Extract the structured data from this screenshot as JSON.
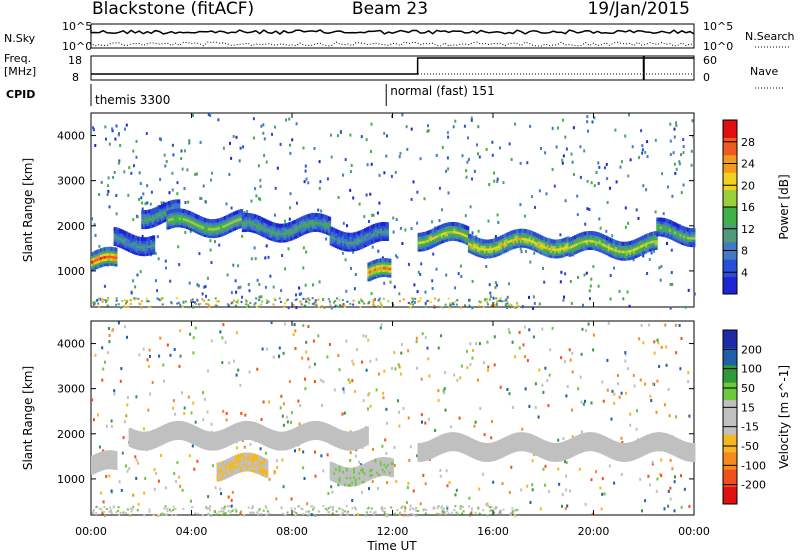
{
  "header": {
    "station": "Blackstone (fitACF)",
    "beam": "Beam 23",
    "date": "19/Jan/2015"
  },
  "aux_panels": {
    "nsky_label": "N.Sky",
    "nsearch_label": "N.Search",
    "nsky_ticks": [
      "10^5",
      "10^0"
    ],
    "nsearch_ticks": [
      "10^5",
      "10^0"
    ],
    "freq_label": "Freq.",
    "freq_unit": "[MHz]",
    "freq_ticks": [
      "18",
      "8"
    ],
    "nave_label": "Nave",
    "nave_ticks": [
      "60",
      "0"
    ],
    "cpid_label": "CPID",
    "cpid_modes": [
      {
        "name": "themis 3300",
        "start_hour": 0,
        "end_hour": 11.75
      },
      {
        "name": "normal (fast) 151",
        "start_hour": 11.75,
        "end_hour": 24
      }
    ],
    "freq_step_hour": 13.0,
    "nave_mark_hour": 22.0
  },
  "colors": {
    "power_scale": [
      "#1f23d6",
      "#2a4fd6",
      "#3f7bc4",
      "#4f9a7a",
      "#3fb04a",
      "#9cd03a",
      "#f0d020",
      "#f59a20",
      "#ef5a20",
      "#e01010"
    ],
    "velocity_scale": [
      "#e01010",
      "#f0501a",
      "#f58a1e",
      "#f5b820",
      "#c0c0c0",
      "#c0c0c0",
      "#6cc83c",
      "#2f9a3a",
      "#1f5fa8",
      "#1f2aa8"
    ]
  },
  "chart_data": [
    {
      "type": "heatmap",
      "name": "power",
      "xlabel": "",
      "ylabel": "Slant Range [km]",
      "xlim": [
        0,
        24
      ],
      "ylim": [
        200,
        4500
      ],
      "yticks": [
        1000,
        2000,
        3000,
        4000
      ],
      "colorbar": {
        "label": "Power [dB]",
        "ticks": [
          "4",
          "8",
          "12",
          "16",
          "20",
          "24",
          "28"
        ],
        "range": [
          0,
          30
        ]
      },
      "bands": [
        {
          "t_start": 0.0,
          "t_end": 1.0,
          "range_km": 1250,
          "value": 26
        },
        {
          "t_start": 0.9,
          "t_end": 2.5,
          "range_km": 1700,
          "value": 10
        },
        {
          "t_start": 2.0,
          "t_end": 3.5,
          "range_km": 2300,
          "value": 12
        },
        {
          "t_start": 3.0,
          "t_end": 6.0,
          "range_km": 2100,
          "value": 16
        },
        {
          "t_start": 6.0,
          "t_end": 9.5,
          "range_km": 2000,
          "value": 12
        },
        {
          "t_start": 9.5,
          "t_end": 11.8,
          "range_km": 1800,
          "value": 10
        },
        {
          "t_start": 11.0,
          "t_end": 11.9,
          "range_km": 1000,
          "value": 24
        },
        {
          "t_start": 13.0,
          "t_end": 15.0,
          "range_km": 1800,
          "value": 18
        },
        {
          "t_start": 15.0,
          "t_end": 19.0,
          "range_km": 1650,
          "value": 20
        },
        {
          "t_start": 19.0,
          "t_end": 22.5,
          "range_km": 1600,
          "value": 18
        },
        {
          "t_start": 22.5,
          "t_end": 24.0,
          "range_km": 1900,
          "value": 14
        }
      ]
    },
    {
      "type": "heatmap",
      "name": "velocity",
      "xlabel": "Time UT",
      "ylabel": "Slant Range [km]",
      "xlim": [
        0,
        24
      ],
      "ylim": [
        200,
        4500
      ],
      "yticks": [
        1000,
        2000,
        3000,
        4000
      ],
      "xticks": [
        "00:00",
        "04:00",
        "08:00",
        "12:00",
        "16:00",
        "20:00",
        "00:00"
      ],
      "colorbar": {
        "label": "Velocity [m s^-1]",
        "ticks": [
          "-200",
          "-100",
          "-50",
          "-15",
          "15",
          "50",
          "100",
          "200"
        ],
        "range": [
          -250,
          250
        ]
      },
      "bands": [
        {
          "t_start": 0.0,
          "t_end": 1.0,
          "range_km": 1350,
          "value": 0
        },
        {
          "t_start": 1.5,
          "t_end": 3.5,
          "range_km": 2000,
          "value": 5
        },
        {
          "t_start": 3.5,
          "t_end": 11.0,
          "range_km": 2000,
          "value": 0
        },
        {
          "t_start": 5.0,
          "t_end": 7.0,
          "range_km": 1300,
          "value": -50
        },
        {
          "t_start": 9.5,
          "t_end": 12.0,
          "range_km": 1200,
          "value": 40
        },
        {
          "t_start": 13.0,
          "t_end": 24.0,
          "range_km": 1750,
          "value": 0
        }
      ]
    }
  ]
}
